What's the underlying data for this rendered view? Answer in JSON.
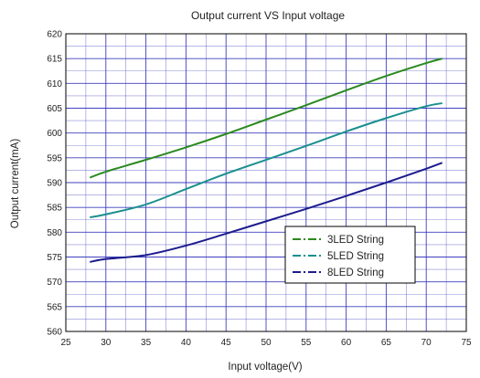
{
  "chart_data": {
    "type": "line",
    "title": "Output current VS Input voltage",
    "xlabel": "Input voltage(V)",
    "ylabel": "Output current(mA)",
    "xlim": [
      25,
      75
    ],
    "ylim": [
      560,
      620
    ],
    "xticks": [
      25,
      30,
      35,
      40,
      45,
      50,
      55,
      60,
      65,
      70,
      75
    ],
    "yticks": [
      560,
      565,
      570,
      575,
      580,
      585,
      590,
      595,
      600,
      605,
      610,
      615,
      620
    ],
    "x_minor_step": 2.5,
    "y_minor_step": 2.5,
    "grid": true,
    "legend_position": "lower-right",
    "colors": {
      "grid": "#2b2bb8",
      "frame": "#000000"
    },
    "series": [
      {
        "name": "3LED String",
        "color": "#2a8a1e",
        "x": [
          28,
          30,
          35,
          40,
          45,
          50,
          55,
          60,
          65,
          70,
          72
        ],
        "y": [
          591,
          592.2,
          594.6,
          597.1,
          599.8,
          602.7,
          605.6,
          608.6,
          611.5,
          614.1,
          615
        ]
      },
      {
        "name": "5LED String",
        "color": "#1a8f8f",
        "x": [
          28,
          30,
          35,
          40,
          45,
          50,
          55,
          60,
          65,
          70,
          72
        ],
        "y": [
          583,
          583.6,
          585.6,
          588.7,
          591.8,
          594.6,
          597.4,
          600.3,
          603.0,
          605.4,
          606
        ]
      },
      {
        "name": "8LED String",
        "color": "#1c1c8e",
        "x": [
          28,
          30,
          35,
          40,
          45,
          50,
          55,
          60,
          65,
          70,
          72
        ],
        "y": [
          574,
          574.6,
          575.4,
          577.3,
          579.7,
          582.2,
          584.7,
          587.3,
          590.0,
          592.8,
          594
        ]
      }
    ]
  }
}
